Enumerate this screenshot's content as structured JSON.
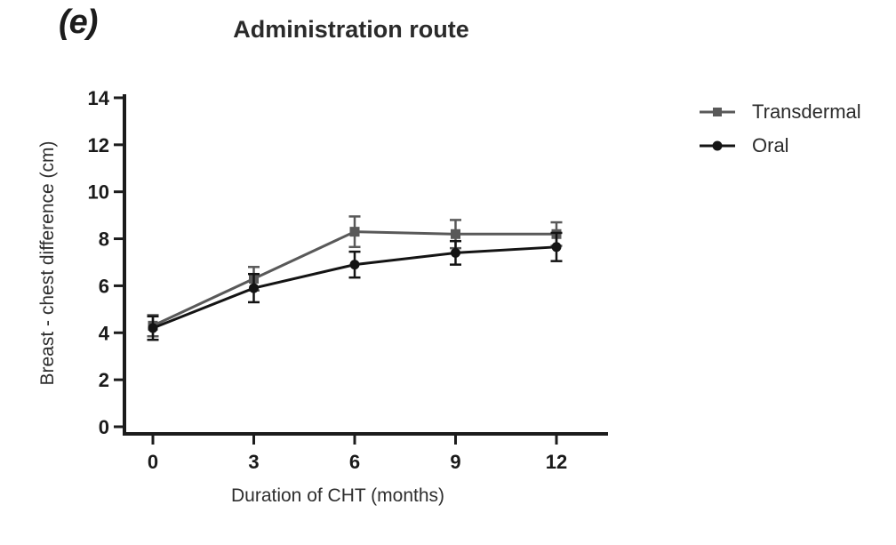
{
  "panel_label": "(e)",
  "colors": {
    "axis": "#1c1c1c",
    "tick_text": "#1a1a1a",
    "transdermal": "#595959",
    "oral": "#141414"
  },
  "chart_data": {
    "type": "line",
    "title": "Administration route",
    "xlabel": "Duration of CHT (months)",
    "ylabel": "Breast - chest difference (cm)",
    "x": [
      0,
      3,
      6,
      9,
      12
    ],
    "x_ticks": [
      0,
      3,
      6,
      9,
      12
    ],
    "y_ticks": [
      0,
      2,
      4,
      6,
      8,
      10,
      12,
      14
    ],
    "xlim": [
      0,
      12
    ],
    "ylim": [
      0,
      14
    ],
    "grid": false,
    "legend_position": "right",
    "error_bars": "symmetric",
    "series": [
      {
        "name": "Transdermal",
        "marker": "square",
        "color": "#595959",
        "values": [
          4.3,
          6.3,
          8.3,
          8.2,
          8.2
        ],
        "errors": [
          0.45,
          0.5,
          0.65,
          0.6,
          0.5
        ]
      },
      {
        "name": "Oral",
        "marker": "circle",
        "color": "#141414",
        "values": [
          4.2,
          5.9,
          6.9,
          7.4,
          7.65
        ],
        "errors": [
          0.5,
          0.6,
          0.55,
          0.5,
          0.6
        ]
      }
    ]
  }
}
